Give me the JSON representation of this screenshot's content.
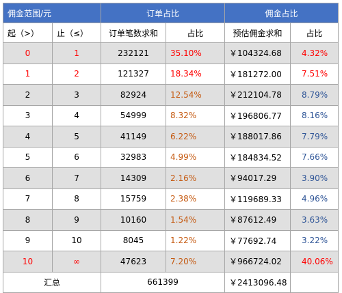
{
  "header": {
    "range_title": "佣金范围/元",
    "orders_title": "订单占比",
    "commission_title": "佣金占比"
  },
  "subheader": {
    "from": "起（>）",
    "to": "止（≤）",
    "order_sum": "订单笔数求和",
    "order_pct": "占比",
    "commission_sum": "预估佣金求和",
    "commission_pct": "占比"
  },
  "rows": [
    {
      "from": "0",
      "to": "1",
      "orders": "232121",
      "orders_pct": "35.10%",
      "commission": "￥104324.68",
      "commission_pct": "4.32%"
    },
    {
      "from": "1",
      "to": "2",
      "orders": "121327",
      "orders_pct": "18.34%",
      "commission": "￥181272.00",
      "commission_pct": "7.51%"
    },
    {
      "from": "2",
      "to": "3",
      "orders": "82924",
      "orders_pct": "12.54%",
      "commission": "￥212104.78",
      "commission_pct": "8.79%"
    },
    {
      "from": "3",
      "to": "4",
      "orders": "54999",
      "orders_pct": "8.32%",
      "commission": "￥196806.77",
      "commission_pct": "8.16%"
    },
    {
      "from": "4",
      "to": "5",
      "orders": "41149",
      "orders_pct": "6.22%",
      "commission": "￥188017.86",
      "commission_pct": "7.79%"
    },
    {
      "from": "5",
      "to": "6",
      "orders": "32983",
      "orders_pct": "4.99%",
      "commission": "￥184834.52",
      "commission_pct": "7.66%"
    },
    {
      "from": "6",
      "to": "7",
      "orders": "14309",
      "orders_pct": "2.16%",
      "commission": "￥94017.29",
      "commission_pct": "3.90%"
    },
    {
      "from": "7",
      "to": "8",
      "orders": "15759",
      "orders_pct": "2.38%",
      "commission": "￥119689.33",
      "commission_pct": "4.96%"
    },
    {
      "from": "8",
      "to": "9",
      "orders": "10160",
      "orders_pct": "1.54%",
      "commission": "￥87612.49",
      "commission_pct": "3.63%"
    },
    {
      "from": "9",
      "to": "10",
      "orders": "8045",
      "orders_pct": "1.22%",
      "commission": "￥77692.74",
      "commission_pct": "3.22%"
    },
    {
      "from": "10",
      "to": "∞",
      "orders": "47623",
      "orders_pct": "7.20%",
      "commission": "￥966724.02",
      "commission_pct": "40.06%"
    }
  ],
  "total": {
    "label": "汇总",
    "orders": "661399",
    "commission": "￥2413096.48"
  },
  "colors": {
    "header_bg": "#4472c4",
    "alt_row_bg": "#e0e0e0",
    "red": "#ff0000",
    "orange": "#c55a11",
    "blue": "#2f5597"
  }
}
